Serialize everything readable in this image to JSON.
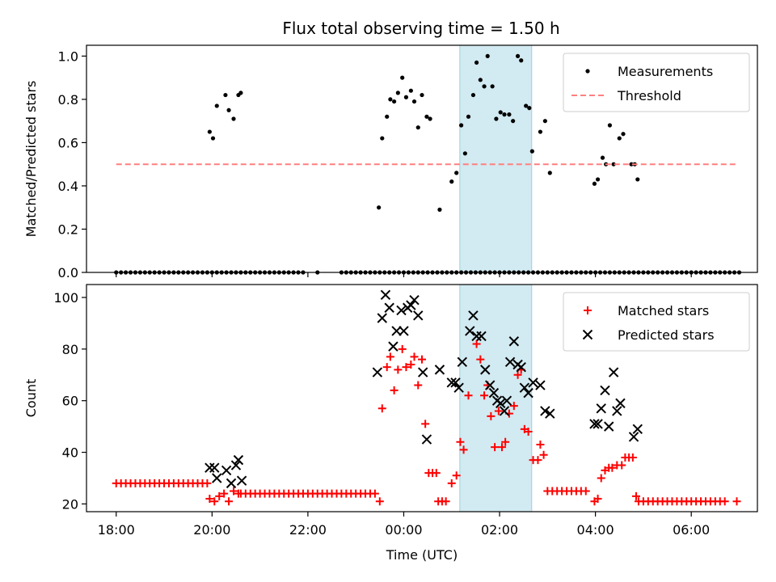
{
  "title": "Flux total observing time = 1.50 h",
  "chart_data": [
    {
      "type": "scatter",
      "panel": "top",
      "ylabel": "Matched/Predicted stars",
      "xlabel": "",
      "x_unit": "hours since 18:00 UTC",
      "xlim": [
        -0.62,
        13.38
      ],
      "ylim": [
        0,
        1.05
      ],
      "yticks": [
        "0.0",
        "0.2",
        "0.4",
        "0.6",
        "0.8",
        "1.0"
      ],
      "yticks_values": [
        0,
        0.2,
        0.4,
        0.6,
        0.8,
        1.0
      ],
      "grid": false,
      "legend_position": "top-right",
      "highlight_span": [
        7.17,
        8.67
      ],
      "series": [
        {
          "name": "Measurements",
          "style": "dots",
          "color": "#000000",
          "zero_points": [
            0.0,
            0.1,
            0.2,
            0.3,
            0.4,
            0.5,
            0.6,
            0.7,
            0.8,
            0.9,
            1.0,
            1.1,
            1.2,
            1.3,
            1.4,
            1.5,
            1.6,
            1.7,
            1.8,
            1.9,
            2.0,
            2.1,
            2.2,
            2.3,
            2.4,
            2.5,
            2.6,
            2.7,
            2.8,
            2.9,
            3.0,
            3.1,
            3.2,
            3.3,
            3.4,
            3.5,
            3.6,
            3.7,
            3.8,
            3.9,
            4.2,
            4.7,
            4.8,
            4.9,
            5.0,
            5.1,
            5.2,
            5.3,
            5.4,
            5.5,
            5.6,
            5.7,
            5.8,
            5.9,
            6.0,
            6.1,
            6.2,
            6.3,
            6.4,
            6.5,
            6.6,
            6.7,
            6.8,
            6.9,
            7.0,
            7.1,
            7.2,
            7.3,
            7.4,
            7.5,
            7.6,
            7.7,
            7.8,
            7.9,
            8.0,
            8.1,
            8.2,
            8.3,
            8.4,
            8.5,
            8.6,
            8.7,
            8.8,
            8.9,
            9.0,
            9.1,
            9.2,
            9.3,
            9.4,
            9.5,
            9.6,
            9.7,
            9.8,
            9.9,
            10.0,
            10.1,
            10.2,
            10.3,
            10.4,
            10.5,
            10.6,
            10.7,
            10.8,
            10.9,
            11.0,
            11.1,
            11.2,
            11.3,
            11.4,
            11.5,
            11.6,
            11.7,
            11.8,
            11.9,
            12.0,
            12.1,
            12.2,
            12.3,
            12.4,
            12.5,
            12.6,
            12.7,
            12.8,
            12.9,
            13.0
          ],
          "points": [
            [
              1.95,
              0.65
            ],
            [
              2.02,
              0.62
            ],
            [
              2.1,
              0.77
            ],
            [
              2.28,
              0.82
            ],
            [
              2.35,
              0.75
            ],
            [
              2.45,
              0.71
            ],
            [
              2.55,
              0.82
            ],
            [
              2.6,
              0.83
            ],
            [
              5.48,
              0.3
            ],
            [
              5.55,
              0.62
            ],
            [
              5.65,
              0.72
            ],
            [
              5.72,
              0.8
            ],
            [
              5.8,
              0.79
            ],
            [
              5.88,
              0.83
            ],
            [
              5.97,
              0.9
            ],
            [
              6.05,
              0.81
            ],
            [
              6.15,
              0.84
            ],
            [
              6.22,
              0.79
            ],
            [
              6.3,
              0.67
            ],
            [
              6.38,
              0.82
            ],
            [
              6.48,
              0.72
            ],
            [
              6.55,
              0.71
            ],
            [
              6.75,
              0.29
            ],
            [
              7.0,
              0.42
            ],
            [
              7.1,
              0.46
            ],
            [
              7.2,
              0.68
            ],
            [
              7.28,
              0.55
            ],
            [
              7.35,
              0.72
            ],
            [
              7.45,
              0.82
            ],
            [
              7.52,
              0.97
            ],
            [
              7.6,
              0.89
            ],
            [
              7.68,
              0.86
            ],
            [
              7.75,
              1.0
            ],
            [
              7.85,
              0.86
            ],
            [
              7.93,
              0.71
            ],
            [
              8.02,
              0.74
            ],
            [
              8.1,
              0.73
            ],
            [
              8.2,
              0.73
            ],
            [
              8.28,
              0.7
            ],
            [
              8.38,
              1.0
            ],
            [
              8.45,
              0.98
            ],
            [
              8.55,
              0.77
            ],
            [
              8.62,
              0.76
            ],
            [
              8.68,
              0.56
            ],
            [
              8.85,
              0.65
            ],
            [
              8.95,
              0.7
            ],
            [
              9.05,
              0.46
            ],
            [
              9.98,
              0.41
            ],
            [
              10.05,
              0.43
            ],
            [
              10.15,
              0.53
            ],
            [
              10.22,
              0.5
            ],
            [
              10.3,
              0.68
            ],
            [
              10.38,
              0.5
            ],
            [
              10.5,
              0.62
            ],
            [
              10.58,
              0.64
            ],
            [
              10.75,
              0.5
            ],
            [
              10.82,
              0.5
            ],
            [
              10.88,
              0.43
            ]
          ]
        },
        {
          "name": "Threshold",
          "style": "dashed-line",
          "color": "#ff7f7f",
          "x": [
            0,
            12.95
          ],
          "y": [
            0.5,
            0.5
          ]
        }
      ]
    },
    {
      "type": "scatter",
      "panel": "bottom",
      "ylabel": "Count",
      "xlabel": "Time (UTC)",
      "x_unit": "hours since 18:00 UTC",
      "xlim": [
        -0.62,
        13.38
      ],
      "ylim": [
        17,
        105
      ],
      "xticks": [
        "18:00",
        "20:00",
        "22:00",
        "00:00",
        "02:00",
        "04:00",
        "06:00"
      ],
      "xticks_values": [
        0,
        2,
        4,
        6,
        8,
        10,
        12
      ],
      "yticks": [
        "20",
        "40",
        "60",
        "80",
        "100"
      ],
      "yticks_values": [
        20,
        40,
        60,
        80,
        100
      ],
      "grid": false,
      "legend_position": "top-right",
      "highlight_span": [
        7.17,
        8.67
      ],
      "series": [
        {
          "name": "Matched stars",
          "marker": "plus",
          "color": "#ff0000",
          "runs": [
            {
              "from": 0.0,
              "to": 1.9,
              "step": 0.1,
              "y": 28
            },
            {
              "from": 2.6,
              "to": 5.4,
              "step": 0.1,
              "y": 24
            },
            {
              "from": 9.0,
              "to": 9.8,
              "step": 0.1,
              "y": 25
            },
            {
              "from": 10.9,
              "to": 12.7,
              "step": 0.1,
              "y": 21
            }
          ],
          "points": [
            [
              1.95,
              22
            ],
            [
              2.05,
              21
            ],
            [
              2.15,
              23
            ],
            [
              2.25,
              24
            ],
            [
              2.35,
              21
            ],
            [
              2.45,
              25
            ],
            [
              2.55,
              24
            ],
            [
              5.5,
              21
            ],
            [
              5.55,
              57
            ],
            [
              5.65,
              73
            ],
            [
              5.72,
              77
            ],
            [
              5.8,
              64
            ],
            [
              5.88,
              72
            ],
            [
              5.97,
              80
            ],
            [
              6.05,
              73
            ],
            [
              6.15,
              74
            ],
            [
              6.22,
              77
            ],
            [
              6.3,
              66
            ],
            [
              6.38,
              76
            ],
            [
              6.45,
              51
            ],
            [
              6.52,
              32
            ],
            [
              6.6,
              32
            ],
            [
              6.68,
              32
            ],
            [
              6.72,
              21
            ],
            [
              6.8,
              21
            ],
            [
              6.88,
              21
            ],
            [
              7.0,
              28
            ],
            [
              7.1,
              31
            ],
            [
              7.18,
              44
            ],
            [
              7.25,
              41
            ],
            [
              7.35,
              62
            ],
            [
              7.52,
              82
            ],
            [
              7.6,
              76
            ],
            [
              7.68,
              62
            ],
            [
              7.75,
              66
            ],
            [
              7.82,
              54
            ],
            [
              7.9,
              42
            ],
            [
              7.98,
              56
            ],
            [
              8.05,
              42
            ],
            [
              8.12,
              44
            ],
            [
              8.2,
              55
            ],
            [
              8.3,
              58
            ],
            [
              8.38,
              70
            ],
            [
              8.45,
              72
            ],
            [
              8.52,
              49
            ],
            [
              8.6,
              48
            ],
            [
              8.7,
              37
            ],
            [
              8.8,
              37
            ],
            [
              8.85,
              43
            ],
            [
              8.92,
              39
            ],
            [
              9.98,
              21
            ],
            [
              10.05,
              22
            ],
            [
              10.12,
              30
            ],
            [
              10.2,
              33
            ],
            [
              10.28,
              34
            ],
            [
              10.35,
              34
            ],
            [
              10.45,
              35
            ],
            [
              10.55,
              35
            ],
            [
              10.62,
              38
            ],
            [
              10.7,
              38
            ],
            [
              10.78,
              38
            ],
            [
              10.85,
              23
            ],
            [
              12.95,
              21
            ]
          ]
        },
        {
          "name": "Predicted stars",
          "marker": "x",
          "color": "#000000",
          "points": [
            [
              1.95,
              34
            ],
            [
              2.05,
              34
            ],
            [
              2.1,
              30
            ],
            [
              2.3,
              33
            ],
            [
              2.4,
              28
            ],
            [
              2.5,
              35
            ],
            [
              2.55,
              37
            ],
            [
              2.62,
              29
            ],
            [
              5.45,
              71
            ],
            [
              5.55,
              92
            ],
            [
              5.62,
              101
            ],
            [
              5.7,
              96
            ],
            [
              5.78,
              81
            ],
            [
              5.85,
              87
            ],
            [
              5.95,
              95
            ],
            [
              6.0,
              87
            ],
            [
              6.08,
              96
            ],
            [
              6.15,
              97
            ],
            [
              6.22,
              99
            ],
            [
              6.3,
              93
            ],
            [
              6.4,
              71
            ],
            [
              6.48,
              45
            ],
            [
              6.75,
              72
            ],
            [
              7.0,
              67
            ],
            [
              7.08,
              67
            ],
            [
              7.15,
              65
            ],
            [
              7.22,
              75
            ],
            [
              7.38,
              87
            ],
            [
              7.45,
              93
            ],
            [
              7.52,
              85
            ],
            [
              7.62,
              85
            ],
            [
              7.7,
              72
            ],
            [
              7.8,
              66
            ],
            [
              7.88,
              63
            ],
            [
              7.95,
              60
            ],
            [
              8.02,
              59
            ],
            [
              8.1,
              56
            ],
            [
              8.15,
              60
            ],
            [
              8.22,
              75
            ],
            [
              8.3,
              83
            ],
            [
              8.38,
              74
            ],
            [
              8.45,
              73
            ],
            [
              8.52,
              65
            ],
            [
              8.6,
              63
            ],
            [
              8.7,
              67
            ],
            [
              8.85,
              66
            ],
            [
              8.95,
              56
            ],
            [
              9.05,
              55
            ],
            [
              9.98,
              51
            ],
            [
              10.05,
              51
            ],
            [
              10.12,
              57
            ],
            [
              10.2,
              64
            ],
            [
              10.28,
              50
            ],
            [
              10.38,
              71
            ],
            [
              10.45,
              56
            ],
            [
              10.52,
              59
            ],
            [
              10.8,
              46
            ],
            [
              10.88,
              49
            ]
          ]
        }
      ]
    }
  ]
}
